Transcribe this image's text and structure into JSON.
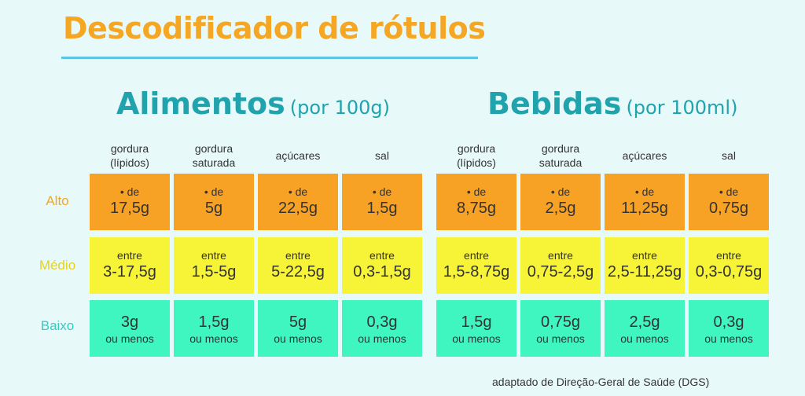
{
  "title": "Descodificador de rótulos",
  "groups": [
    {
      "name": "Alimentos",
      "unit": "(por 100g)",
      "columns": [
        "gordura\n(lípidos)",
        "gordura\nsaturada",
        "açúcares",
        "sal"
      ],
      "high": [
        "17,5g",
        "5g",
        "22,5g",
        "1,5g"
      ],
      "medium": [
        "3-17,5g",
        "1,5-5g",
        "5-22,5g",
        "0,3-1,5g"
      ],
      "low": [
        "3g",
        "1,5g",
        "5g",
        "0,3g"
      ]
    },
    {
      "name": "Bebidas",
      "unit": "(por 100ml)",
      "columns": [
        "gordura\n(lípidos)",
        "gordura\nsaturada",
        "açúcares",
        "sal"
      ],
      "high": [
        "8,75g",
        "2,5g",
        "11,25g",
        "0,75g"
      ],
      "medium": [
        "1,5-8,75g",
        "0,75-2,5g",
        "2,5-11,25g",
        "0,3-0,75g"
      ],
      "low": [
        "1,5g",
        "0,75g",
        "2,5g",
        "0,3g"
      ]
    }
  ],
  "levels": {
    "high": {
      "label": "Alto",
      "prefix": "• de",
      "color": "#f7a125",
      "label_color": "#f5a623"
    },
    "medium": {
      "label": "Médio",
      "prefix": "entre",
      "color": "#f7f337",
      "label_color": "#e6d21e"
    },
    "low": {
      "label": "Baixo",
      "suffix": "ou menos",
      "color": "#3ff5c0",
      "label_color": "#39c9c0"
    }
  },
  "footer": "adaptado de Direção-Geral de Saúde (DGS)"
}
